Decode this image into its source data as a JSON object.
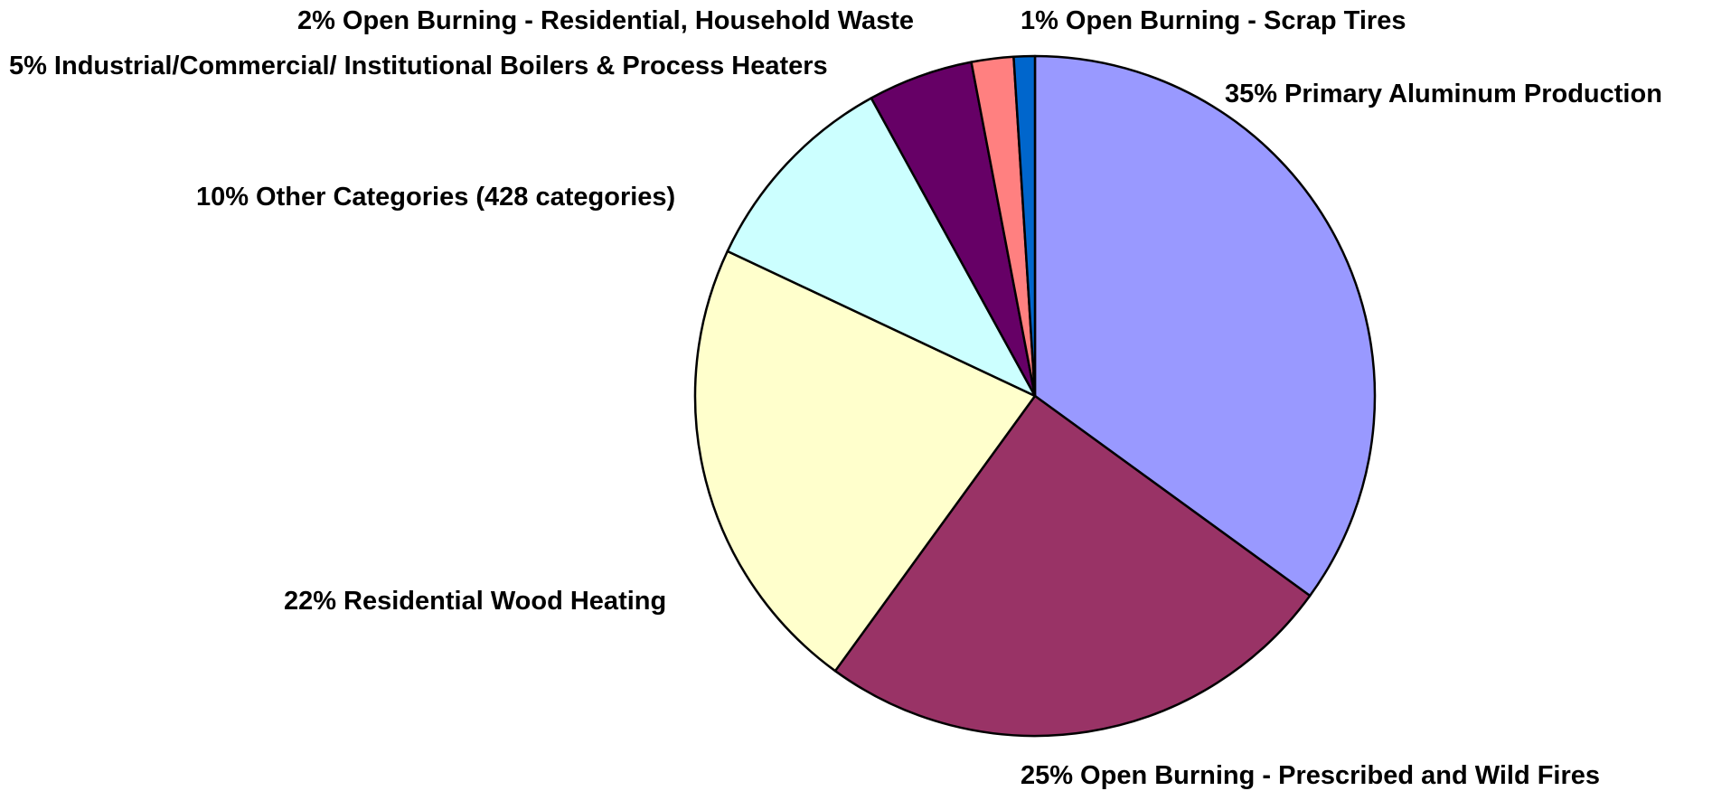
{
  "chart_data": {
    "type": "pie",
    "categories": [
      "Primary Aluminum Production",
      "Open Burning - Prescribed  and Wild Fires",
      "Residential Wood Heating",
      "Other Categories (428 categories)",
      "Industrial/Commercial/ Institutional Boilers & Process Heaters",
      "Open Burning - Residential, Household Waste",
      "Open Burning - Scrap Tires"
    ],
    "values": [
      35,
      25,
      22,
      10,
      5,
      2,
      1
    ],
    "value_labels": [
      "35%",
      "25%",
      "22%",
      "10%",
      "5%",
      "2%",
      "1%"
    ],
    "colors": [
      "#9999ff",
      "#993366",
      "#ffffcc",
      "#ccffff",
      "#660066",
      "#ff8080",
      "#0066cc"
    ]
  }
}
